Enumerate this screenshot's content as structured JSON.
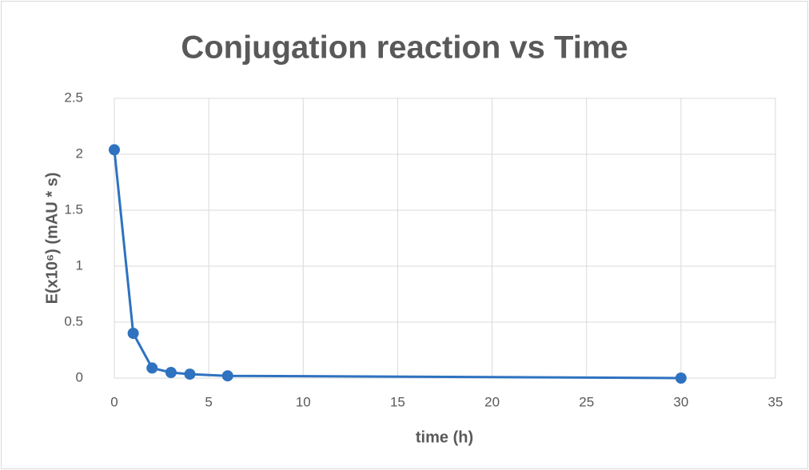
{
  "chart_data": {
    "type": "line",
    "title": "Conjugation reaction vs Time",
    "x_label": "time (h)",
    "y_label": "E(x10⁶) (mAU * s)",
    "x": [
      0,
      1,
      2,
      3,
      4,
      6,
      30
    ],
    "series": [
      {
        "color": "#2e72c0",
        "values": [
          2.04,
          0.4,
          0.09,
          0.05,
          0.035,
          0.02,
          0.0
        ]
      }
    ],
    "xlim": [
      0,
      35
    ],
    "xticks": [
      0,
      5,
      10,
      15,
      20,
      25,
      30,
      35
    ],
    "ylim": [
      0,
      2.5
    ],
    "yticks": [
      0,
      0.5,
      1,
      1.5,
      2,
      2.5
    ],
    "grid": true
  }
}
